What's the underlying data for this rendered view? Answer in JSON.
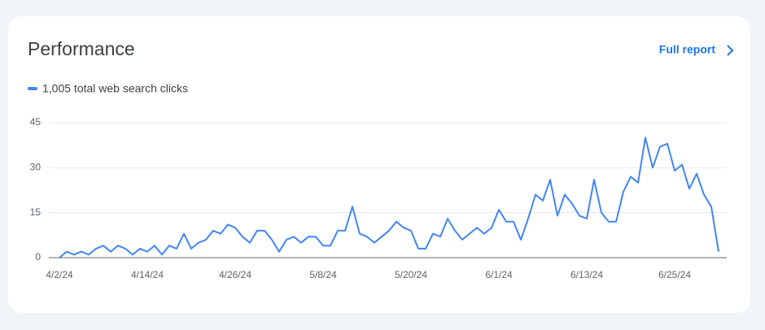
{
  "header": {
    "title": "Performance",
    "link": "Full report"
  },
  "chart_data": {
    "type": "line",
    "categories": [
      "4/2/24",
      null,
      null,
      null,
      null,
      null,
      null,
      null,
      null,
      null,
      null,
      null,
      "4/14/24",
      null,
      null,
      null,
      null,
      null,
      null,
      null,
      null,
      null,
      null,
      null,
      "4/26/24",
      null,
      null,
      null,
      null,
      null,
      null,
      null,
      null,
      null,
      null,
      null,
      "5/8/24",
      null,
      null,
      null,
      null,
      null,
      null,
      null,
      null,
      null,
      null,
      null,
      "5/20/24",
      null,
      null,
      null,
      null,
      null,
      null,
      null,
      null,
      null,
      null,
      null,
      "6/1/24",
      null,
      null,
      null,
      null,
      null,
      null,
      null,
      null,
      null,
      null,
      null,
      "6/13/24",
      null,
      null,
      null,
      null,
      null,
      null,
      null,
      null,
      null,
      null,
      null,
      "6/25/24",
      null,
      null,
      null,
      null,
      null,
      null
    ],
    "series": [
      {
        "name": "1,005 total web search clicks",
        "color": "#4285f4",
        "values": [
          0,
          2,
          1,
          2,
          1,
          3,
          4,
          2,
          4,
          3,
          1,
          3,
          2,
          4,
          1,
          4,
          3,
          8,
          3,
          5,
          6,
          9,
          8,
          11,
          10,
          7,
          5,
          9,
          9,
          6,
          2,
          6,
          7,
          5,
          7,
          7,
          4,
          4,
          9,
          9,
          17,
          8,
          7,
          5,
          7,
          9,
          12,
          10,
          9,
          3,
          3,
          8,
          7,
          13,
          9,
          6,
          8,
          10,
          8,
          10,
          16,
          12,
          12,
          6,
          13,
          21,
          19,
          26,
          14,
          21,
          18,
          14,
          13,
          26,
          15,
          12,
          12,
          22,
          27,
          25,
          40,
          30,
          37,
          38,
          29,
          31,
          23,
          28,
          21,
          17,
          2
        ]
      }
    ],
    "ylim": [
      0,
      45
    ],
    "yticks": [
      0,
      15,
      30,
      45
    ],
    "grid": true
  }
}
